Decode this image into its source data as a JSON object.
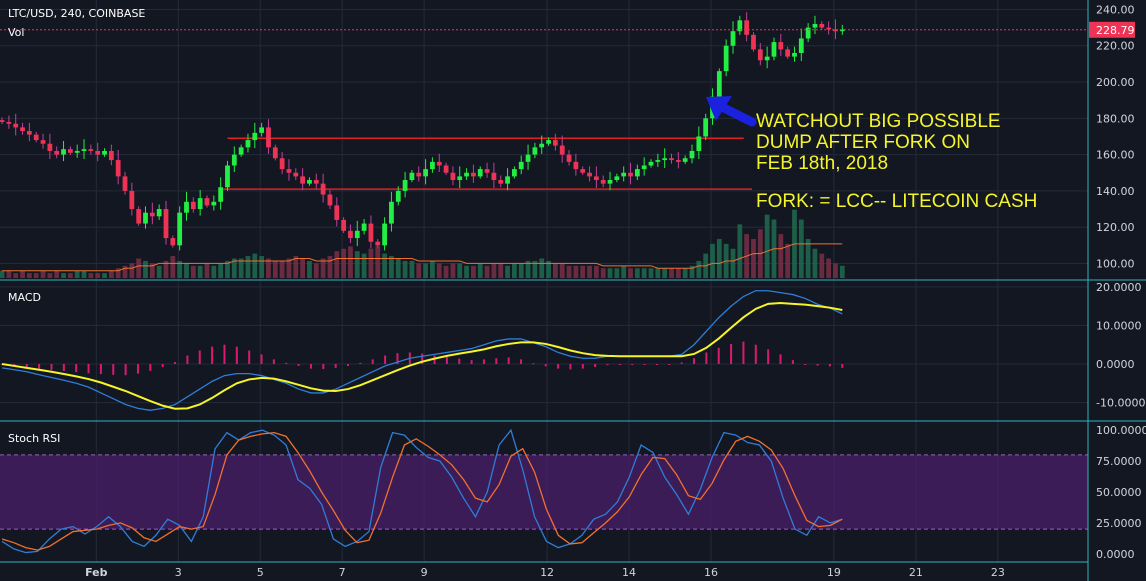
{
  "header": {
    "symbol": "LTC/USD, 240, COINBASE",
    "volume_label": "Vol"
  },
  "price_tag": "228.79",
  "annotations": {
    "line1": "WATCHOUT BIG POSSIBLE",
    "line2": "DUMP AFTER FORK ON",
    "line3": "FEB 18th, 2018",
    "line4": "FORK: = LCC-- LITECOIN CASH"
  },
  "colors": {
    "bg": "#131722",
    "up": "#22ee44",
    "down": "#ee3355",
    "grid": "#242a3a",
    "hline": "#e02020",
    "macd": "#2f7dd6",
    "signal": "#f5f52a",
    "hist": "#d81b70",
    "rsi_k": "#2f7dd6",
    "rsi_d": "#f07030",
    "band": "#4a1f6a",
    "note": "#f5f52a",
    "arrow": "#1a22e0",
    "axis_sep": "#2cb5c0"
  },
  "icons": {
    "arrow": "up-left-arrow"
  },
  "chart_data": [
    {
      "type": "candlestick",
      "title": "LTC/USD, 240, COINBASE",
      "x_tick_labels": [
        "Feb",
        "3",
        "5",
        "7",
        "9",
        "12",
        "14",
        "16",
        "19",
        "21",
        "23"
      ],
      "x_tick_days": [
        1,
        3,
        5,
        7,
        9,
        12,
        14,
        16,
        19,
        21,
        23
      ],
      "x_range_days": [
        -1.35,
        25.2
      ],
      "ylim": [
        92,
        243
      ],
      "y_ticks": [
        100,
        120,
        140,
        160,
        180,
        200,
        220,
        240
      ],
      "last_price": 228.79,
      "support_resistance": [
        {
          "price": 169,
          "from_day": 4.2,
          "to_day": 16.8
        },
        {
          "price": 141,
          "from_day": 4.0,
          "to_day": 17.0
        }
      ],
      "candles_start_day": -1.3,
      "candle_step_days": 0.1667,
      "closes": [
        178,
        177,
        175,
        173,
        171,
        168,
        166,
        162,
        160,
        163,
        161,
        162,
        163,
        162,
        160,
        162,
        157,
        148,
        140,
        130,
        122,
        128,
        126,
        130,
        114,
        110,
        128,
        134,
        130,
        136,
        132,
        134,
        142,
        154,
        160,
        164,
        168,
        172,
        175,
        164,
        158,
        152,
        150,
        148,
        144,
        146,
        144,
        138,
        132,
        124,
        118,
        114,
        118,
        122,
        112,
        110,
        122,
        134,
        140,
        146,
        150,
        148,
        152,
        156,
        154,
        150,
        146,
        148,
        150,
        148,
        152,
        150,
        146,
        144,
        148,
        152,
        156,
        160,
        164,
        166,
        168,
        165,
        160,
        156,
        152,
        150,
        148,
        146,
        144,
        146,
        148,
        150,
        148,
        152,
        154,
        156,
        157,
        158,
        157,
        156,
        158,
        162,
        170,
        180,
        192,
        206,
        220,
        228,
        234,
        226,
        218,
        212,
        214,
        222,
        218,
        214,
        216,
        224,
        230,
        232,
        230,
        229,
        228,
        229
      ],
      "volumes": [
        3,
        3,
        2,
        3,
        2,
        2,
        3,
        2,
        3,
        2,
        2,
        3,
        3,
        2,
        2,
        2,
        3,
        4,
        5,
        6,
        8,
        7,
        6,
        5,
        7,
        9,
        7,
        6,
        5,
        5,
        6,
        5,
        6,
        7,
        8,
        8,
        9,
        10,
        9,
        8,
        7,
        7,
        8,
        9,
        8,
        7,
        6,
        8,
        9,
        11,
        12,
        13,
        11,
        10,
        12,
        13,
        10,
        9,
        8,
        7,
        7,
        6,
        6,
        7,
        6,
        5,
        6,
        6,
        5,
        5,
        6,
        5,
        6,
        6,
        5,
        6,
        6,
        7,
        7,
        8,
        7,
        6,
        6,
        5,
        5,
        5,
        5,
        5,
        4,
        4,
        4,
        5,
        4,
        4,
        4,
        4,
        4,
        4,
        4,
        4,
        4,
        5,
        7,
        10,
        14,
        16,
        14,
        12,
        22,
        18,
        16,
        20,
        26,
        24,
        18,
        14,
        28,
        24,
        16,
        12,
        10,
        8,
        6,
        5
      ],
      "vol_max": 32,
      "vol_ma": [
        3,
        3,
        3,
        3,
        3,
        3,
        3,
        3,
        3,
        3,
        3,
        3,
        3,
        3,
        3,
        3,
        3,
        3,
        4,
        4,
        5,
        5,
        5,
        6,
        6,
        6,
        6,
        6,
        6,
        6,
        6,
        6,
        6,
        6,
        7,
        7,
        7,
        7,
        7,
        7,
        7,
        7,
        7,
        8,
        8,
        8,
        7,
        7,
        7,
        8,
        8,
        8,
        8,
        8,
        8,
        8,
        8,
        8,
        8,
        8,
        8,
        7,
        7,
        7,
        7,
        7,
        7,
        7,
        6,
        6,
        6,
        6,
        6,
        6,
        6,
        6,
        6,
        6,
        6,
        6,
        6,
        6,
        6,
        6,
        6,
        6,
        6,
        6,
        5,
        5,
        5,
        5,
        5,
        5,
        5,
        5,
        4,
        4,
        4,
        4,
        4,
        4,
        5,
        5,
        6,
        6,
        7,
        7,
        8,
        9,
        10,
        10,
        11,
        12,
        12,
        13,
        14,
        14,
        14,
        14,
        14,
        14,
        14,
        14
      ]
    },
    {
      "type": "line",
      "title": "MACD",
      "ylim": [
        -14,
        21
      ],
      "y_ticks": [
        -10,
        0,
        10,
        20
      ],
      "y_tick_labels": [
        "-10.0000",
        "0.0000",
        "10.0000",
        "20.0000"
      ],
      "series": [
        {
          "key": "macd",
          "values": [
            -1,
            -1.5,
            -2,
            -2.8,
            -3.5,
            -4.2,
            -5,
            -6,
            -7.5,
            -9,
            -10.5,
            -11.5,
            -12,
            -11.5,
            -10.5,
            -8.5,
            -6.5,
            -4.5,
            -3,
            -2.5,
            -2.5,
            -3,
            -4,
            -5,
            -6.5,
            -7.5,
            -7.5,
            -6.5,
            -5,
            -3.5,
            -2,
            -0.5,
            0.5,
            1.5,
            2,
            2.5,
            3,
            3.5,
            4,
            5,
            6,
            6.5,
            6.5,
            5.5,
            4.5,
            3,
            2,
            1.5,
            1.5,
            2,
            2,
            2,
            2,
            2,
            2,
            2.5,
            5,
            8.5,
            12,
            15,
            17.5,
            19,
            19,
            18.5,
            18,
            17,
            15.5,
            14.5,
            13
          ]
        },
        {
          "key": "signal",
          "values": [
            0,
            -0.5,
            -1,
            -1.5,
            -2,
            -2.6,
            -3.2,
            -3.9,
            -4.8,
            -5.9,
            -7,
            -8.3,
            -9.6,
            -10.8,
            -11.6,
            -11.5,
            -10.5,
            -8.8,
            -6.8,
            -5,
            -4,
            -3.6,
            -3.8,
            -4.5,
            -5.4,
            -6.3,
            -6.9,
            -7,
            -6.5,
            -5.5,
            -4.2,
            -2.9,
            -1.6,
            -0.4,
            0.6,
            1.4,
            2.1,
            2.7,
            3.2,
            3.8,
            4.6,
            5.2,
            5.6,
            5.6,
            5.2,
            4.4,
            3.5,
            2.8,
            2.3,
            2.1,
            2,
            2,
            2,
            2,
            2,
            2,
            2.6,
            4.2,
            6.6,
            9.4,
            12.1,
            14.3,
            15.6,
            15.8,
            15.6,
            15.4,
            15,
            14.6,
            14
          ]
        }
      ],
      "histogram": [
        -0.3,
        -0.6,
        -0.9,
        -1.2,
        -1.5,
        -1.8,
        -2.1,
        -2.4,
        -2.6,
        -2.8,
        -2.9,
        -2.5,
        -1.8,
        -0.8,
        0.5,
        2.2,
        3.5,
        4.5,
        5,
        4.5,
        3.5,
        2.5,
        1.2,
        0.3,
        -0.5,
        -1.2,
        -1.3,
        -1,
        -0.5,
        0.3,
        1.2,
        2.2,
        2.8,
        3,
        2.7,
        2.2,
        1.8,
        1.4,
        1,
        1.2,
        1.5,
        1.7,
        1.2,
        0.2,
        -0.6,
        -1.2,
        -1.4,
        -1.2,
        -0.8,
        -0.3,
        0,
        0,
        0,
        0,
        0,
        0.4,
        1.5,
        3,
        4.2,
        5.2,
        5.8,
        5,
        3.8,
        2.5,
        1,
        -0.2,
        -0.4,
        -0.6,
        -1
      ]
    },
    {
      "type": "line",
      "title": "Stoch RSI",
      "ylim": [
        -5,
        105
      ],
      "y_ticks": [
        0,
        25,
        50,
        75,
        100
      ],
      "y_tick_labels": [
        "0.0000",
        "25.0000",
        "50.0000",
        "75.0000",
        "100.0000"
      ],
      "band": [
        20,
        80
      ],
      "series": [
        {
          "key": "k",
          "values": [
            10,
            4,
            1,
            2,
            12,
            20,
            22,
            16,
            22,
            30,
            22,
            10,
            6,
            15,
            28,
            23,
            10,
            30,
            85,
            98,
            92,
            98,
            100,
            96,
            88,
            60,
            53,
            40,
            12,
            6,
            10,
            18,
            70,
            98,
            96,
            86,
            78,
            75,
            62,
            45,
            30,
            50,
            88,
            100,
            68,
            30,
            10,
            5,
            8,
            15,
            28,
            32,
            42,
            62,
            88,
            82,
            62,
            48,
            32,
            52,
            78,
            98,
            96,
            90,
            88,
            75,
            45,
            20,
            15,
            30,
            25,
            28
          ]
        },
        {
          "key": "d",
          "values": [
            12,
            9,
            5,
            3,
            6,
            12,
            18,
            19,
            20,
            23,
            25,
            21,
            13,
            10,
            16,
            22,
            20,
            22,
            48,
            80,
            92,
            95,
            97,
            98,
            95,
            82,
            67,
            50,
            35,
            19,
            9,
            11,
            33,
            62,
            88,
            93,
            87,
            80,
            72,
            60,
            45,
            42,
            56,
            79,
            85,
            66,
            36,
            15,
            8,
            9,
            17,
            25,
            34,
            46,
            64,
            78,
            77,
            64,
            47,
            44,
            57,
            76,
            91,
            95,
            91,
            84,
            69,
            47,
            27,
            22,
            23,
            28
          ]
        }
      ]
    }
  ]
}
